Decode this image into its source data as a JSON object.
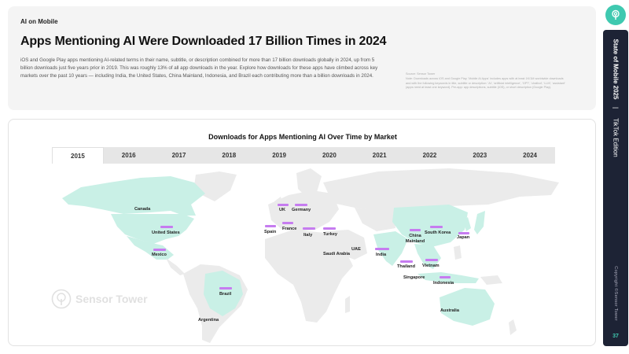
{
  "header": {
    "section_tag": "AI on Mobile",
    "title": "Apps Mentioning AI Were Downloaded 17 Billion Times in 2024",
    "description": "iOS and Google Play apps mentioning AI-related terms in their name, subtitle, or description combined for more than 17 billion downloads globally in 2024, up from 5 billion downloads just five years prior in 2019. This was roughly 13% of all app downloads in the year. Explore how downloads for these apps have climbed across key markets over the past 10 years — including India, the United States, China Mainland, Indonesia, and Brazil each contributing more than a billion downloads in 2024.",
    "source_title": "Source: Sensor Tower",
    "source_body": "Note: Downloads across iOS and Google Play. 'Mobile AI Apps' includes apps with at least 1K/1M worldwide downloads and with the following keywords in title, subtitle or description: 'AI', 'artificial intelligence', 'GPT', 'chatbot', 'LLM', 'assistant' (apps need at least one keyword). Per-app: app descriptions, subtitle (iOS), or short description (Google Play)."
  },
  "sidebar": {
    "brand_title": "State of Mobile 2025",
    "separator": "|",
    "edition": "TikTok Edition",
    "copyright": "Copyright ©Sensor Tower",
    "page_number": "37",
    "icon": "sensor-tower-logo-icon",
    "accent_color": "#3fc9b0",
    "rail_color": "#1d2335"
  },
  "chart": {
    "title": "Downloads for Apps Mentioning AI Over Time by Market",
    "selected_year": "2015",
    "years": [
      "2015",
      "2016",
      "2017",
      "2018",
      "2019",
      "2020",
      "2021",
      "2022",
      "2023",
      "2024"
    ],
    "watermark": "Sensor Tower",
    "bar_color": "#c67cf0",
    "highlight_color": "#c9f0e6",
    "land_color": "#ebebeb"
  },
  "markets": [
    {
      "name": "Canada"
    },
    {
      "name": "United States"
    },
    {
      "name": "Mexico"
    },
    {
      "name": "Brazil"
    },
    {
      "name": "Argentina"
    },
    {
      "name": "UK"
    },
    {
      "name": "Germany"
    },
    {
      "name": "Spain"
    },
    {
      "name": "France"
    },
    {
      "name": "Italy"
    },
    {
      "name": "Turkey"
    },
    {
      "name": "Saudi Arabia"
    },
    {
      "name": "UAE"
    },
    {
      "name": "India"
    },
    {
      "name": "China Mainland"
    },
    {
      "name": "South Korea"
    },
    {
      "name": "Japan"
    },
    {
      "name": "Thailand"
    },
    {
      "name": "Vietnam"
    },
    {
      "name": "Singapore"
    },
    {
      "name": "Indonesia"
    },
    {
      "name": "Australia"
    }
  ]
}
